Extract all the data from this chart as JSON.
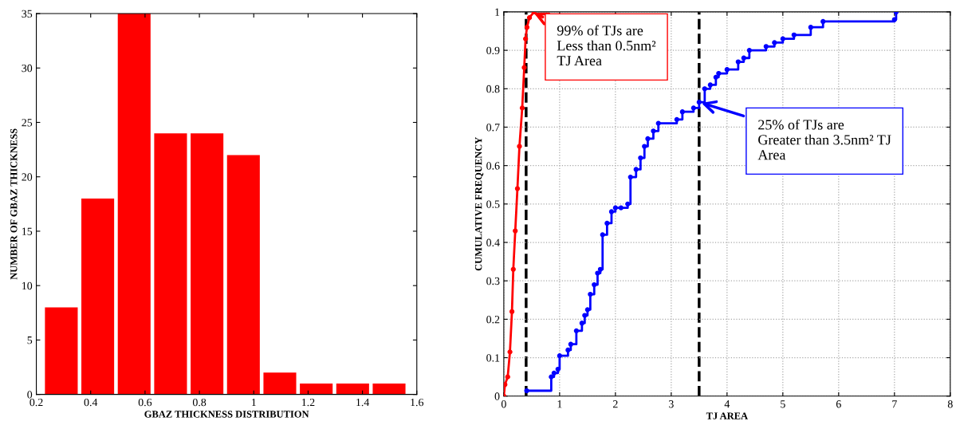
{
  "chart_data": [
    {
      "type": "histogram",
      "xlabel": "GBAZ THICKNESS DISTRIBUTION",
      "ylabel": "NUMBER OF GBAZ THICKNESS",
      "bins": [
        0.225,
        0.359,
        0.493,
        0.627,
        0.761,
        0.895,
        1.029,
        1.163,
        1.297,
        1.431,
        1.565
      ],
      "values": [
        8,
        18,
        35,
        24,
        24,
        22,
        2,
        1,
        1,
        1
      ],
      "color": "#ff0000",
      "xlim": [
        0.2,
        1.6
      ],
      "xticks": [
        0.2,
        0.4,
        0.6,
        0.8,
        1,
        1.2,
        1.4,
        1.6
      ],
      "ylim": [
        0,
        35
      ],
      "yticks": [
        0,
        5,
        10,
        15,
        20,
        25,
        30,
        35
      ],
      "grid": false
    },
    {
      "type": "line",
      "xlabel": "TJ AREA",
      "ylabel": "CUMULATIVE FREQUENCY",
      "series": [
        {
          "type": "line",
          "color": "#ff0000",
          "x": [
            0,
            0.02,
            0.07,
            0.11,
            0.146,
            0.17,
            0.205,
            0.244,
            0.28,
            0.33,
            0.366,
            0.39,
            0.415,
            0.46,
            0.54
          ],
          "values": [
            0,
            0.03,
            0.05,
            0.115,
            0.22,
            0.33,
            0.43,
            0.54,
            0.65,
            0.75,
            0.855,
            0.93,
            0.96,
            0.985,
            1.0
          ]
        },
        {
          "type": "step",
          "color": "#0000ff",
          "x": [
            0.41,
            0.85,
            0.9,
            0.97,
            1.0,
            1.15,
            1.2,
            1.3,
            1.4,
            1.45,
            1.5,
            1.55,
            1.62,
            1.68,
            1.73,
            1.77,
            1.85,
            1.93,
            2.0,
            2.1,
            2.22,
            2.27,
            2.37,
            2.45,
            2.52,
            2.58,
            2.68,
            2.77,
            3.1,
            3.2,
            3.4,
            3.5,
            3.6,
            3.7,
            3.8,
            3.85,
            4.0,
            4.2,
            4.3,
            4.4,
            4.7,
            4.85,
            5.0,
            5.2,
            5.5,
            5.72,
            7.0,
            7.03
          ],
          "values": [
            0.014,
            0.05,
            0.06,
            0.07,
            0.105,
            0.12,
            0.135,
            0.17,
            0.19,
            0.21,
            0.225,
            0.265,
            0.29,
            0.32,
            0.33,
            0.42,
            0.45,
            0.48,
            0.49,
            0.49,
            0.5,
            0.57,
            0.59,
            0.62,
            0.65,
            0.67,
            0.69,
            0.71,
            0.72,
            0.74,
            0.75,
            0.765,
            0.8,
            0.81,
            0.83,
            0.84,
            0.85,
            0.87,
            0.88,
            0.9,
            0.91,
            0.92,
            0.93,
            0.94,
            0.96,
            0.975,
            0.98,
            1.0
          ]
        }
      ],
      "xlim": [
        0,
        8
      ],
      "xticks": [
        0,
        1,
        2,
        3,
        4,
        5,
        6,
        7,
        8
      ],
      "ylim": [
        0,
        1
      ],
      "yticks": [
        0,
        0.1,
        0.2,
        0.3,
        0.4,
        0.5,
        0.6,
        0.7,
        0.8,
        0.9,
        1
      ],
      "grid": true,
      "marker": "circle",
      "ref_lines": [
        {
          "axis": "x",
          "value": 0.4,
          "color": "#000000",
          "line_style": "dashed"
        },
        {
          "axis": "x",
          "value": 3.5,
          "color": "#000000",
          "line_style": "dashed"
        }
      ],
      "annotations": [
        {
          "text": "99% of TJs are\nLess than 0.5nm²\nTJ Area",
          "x": 0.5,
          "y": 1.0
        },
        {
          "text": "25% of TJs are\nGreater than 3.5nm² TJ\nArea",
          "x": 3.5,
          "y": 0.765
        }
      ]
    }
  ]
}
